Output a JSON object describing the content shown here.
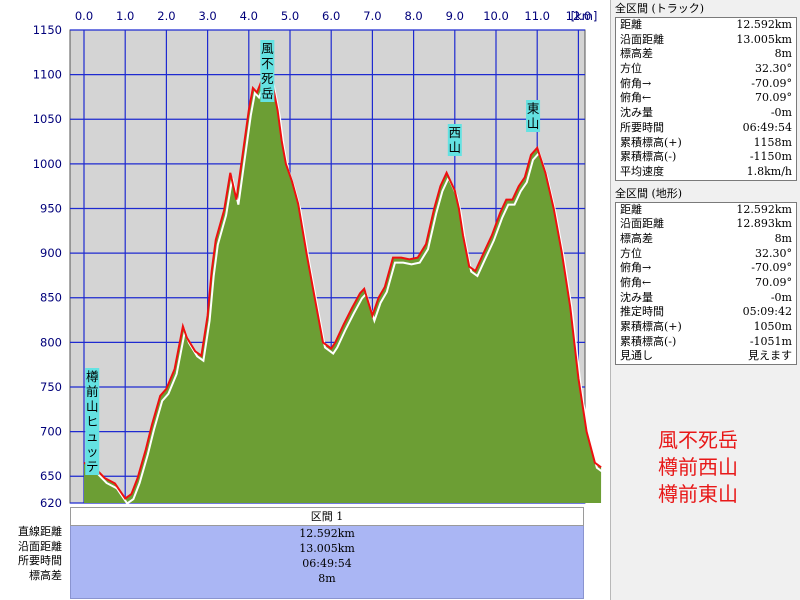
{
  "chart_data": {
    "type": "area",
    "x_unit": "km",
    "xlim": [
      0.0,
      12.6
    ],
    "ylim": [
      620,
      1150
    ],
    "x_ticks": [
      "0.0",
      "1.0",
      "2.0",
      "3.0",
      "4.0",
      "5.0",
      "6.0",
      "7.0",
      "8.0",
      "9.0",
      "10.0",
      "11.0",
      "12.0"
    ],
    "y_ticks": [
      "1150",
      "1100",
      "1050",
      "1000",
      "950",
      "900",
      "850",
      "800",
      "750",
      "700",
      "650",
      "620"
    ],
    "grid": true,
    "colors": {
      "plot_bg": "#d4d4d4",
      "grid": "#1e2ad0",
      "fill": "#6c9e34",
      "track": "#ee1010",
      "terrain": "#ffffff",
      "tick_text": "#00007a"
    },
    "series": [
      {
        "name": "トラック",
        "x": [
          0.0,
          0.25,
          0.5,
          0.75,
          1.0,
          1.15,
          1.3,
          1.5,
          1.65,
          1.85,
          2.0,
          2.2,
          2.4,
          2.5,
          2.7,
          2.85,
          3.0,
          3.1,
          3.2,
          3.4,
          3.55,
          3.7,
          3.85,
          4.0,
          4.1,
          4.2,
          4.3,
          4.4,
          4.55,
          4.7,
          4.8,
          4.9,
          5.05,
          5.2,
          5.4,
          5.6,
          5.8,
          6.0,
          6.1,
          6.3,
          6.5,
          6.7,
          6.8,
          6.9,
          7.0,
          7.15,
          7.3,
          7.5,
          7.7,
          7.9,
          8.1,
          8.3,
          8.5,
          8.65,
          8.8,
          9.0,
          9.1,
          9.2,
          9.35,
          9.5,
          9.7,
          9.9,
          10.1,
          10.25,
          10.4,
          10.55,
          10.7,
          10.85,
          11.0,
          11.2,
          11.4,
          11.6,
          11.8,
          12.0,
          12.2,
          12.4,
          12.55
        ],
        "y": [
          665,
          660,
          648,
          642,
          625,
          630,
          648,
          680,
          708,
          740,
          748,
          770,
          818,
          805,
          790,
          785,
          830,
          880,
          915,
          948,
          990,
          960,
          1010,
          1060,
          1085,
          1080,
          1092,
          1090,
          1095,
          1060,
          1025,
          1000,
          980,
          955,
          900,
          850,
          800,
          793,
          800,
          820,
          838,
          855,
          860,
          845,
          830,
          850,
          862,
          895,
          895,
          893,
          895,
          910,
          950,
          975,
          990,
          970,
          950,
          920,
          885,
          880,
          900,
          920,
          945,
          960,
          960,
          975,
          985,
          1010,
          1018,
          990,
          950,
          900,
          840,
          760,
          700,
          665,
          660
        ]
      }
    ],
    "annotations": [
      {
        "label": "風不死岳",
        "x": 4.45
      },
      {
        "label": "西山",
        "x": 9.0
      },
      {
        "label": "東山",
        "x": 10.9
      },
      {
        "label": "樽前山ヒュッテ",
        "x": 0.2
      }
    ]
  },
  "section": {
    "title": "区間 1",
    "labels": [
      "直線距離",
      "沿面距離",
      "所要時間",
      "標高差"
    ],
    "values": [
      "12.592km",
      "13.005km",
      "06:49:54",
      "8m"
    ]
  },
  "panel": {
    "track": {
      "header": "全区間 (トラック)",
      "rows": [
        {
          "k": "距離",
          "v": "12.592km"
        },
        {
          "k": "沿面距離",
          "v": "13.005km"
        },
        {
          "k": "標高差",
          "v": "8m"
        },
        {
          "k": "方位",
          "v": "32.30°"
        },
        {
          "k": "俯角→",
          "v": "-70.09°"
        },
        {
          "k": "俯角←",
          "v": "70.09°"
        },
        {
          "k": "沈み量",
          "v": "-0m"
        },
        {
          "k": "所要時間",
          "v": "06:49:54"
        },
        {
          "k": "累積標高(+)",
          "v": "1158m"
        },
        {
          "k": "累積標高(-)",
          "v": "-1150m"
        },
        {
          "k": "平均速度",
          "v": "1.8km/h"
        }
      ]
    },
    "terrain": {
      "header": "全区間 (地形)",
      "rows": [
        {
          "k": "距離",
          "v": "12.592km"
        },
        {
          "k": "沿面距離",
          "v": "12.893km"
        },
        {
          "k": "標高差",
          "v": "8m"
        },
        {
          "k": "方位",
          "v": "32.30°"
        },
        {
          "k": "俯角→",
          "v": "-70.09°"
        },
        {
          "k": "俯角←",
          "v": "70.09°"
        },
        {
          "k": "沈み量",
          "v": "-0m"
        },
        {
          "k": "推定時間",
          "v": "05:09:42"
        },
        {
          "k": "累積標高(+)",
          "v": "1050m"
        },
        {
          "k": "累積標高(-)",
          "v": "-1051m"
        },
        {
          "k": "見通し",
          "v": "見えます"
        }
      ]
    }
  },
  "legend": [
    "風不死岳",
    "樽前西山",
    "樽前東山"
  ]
}
